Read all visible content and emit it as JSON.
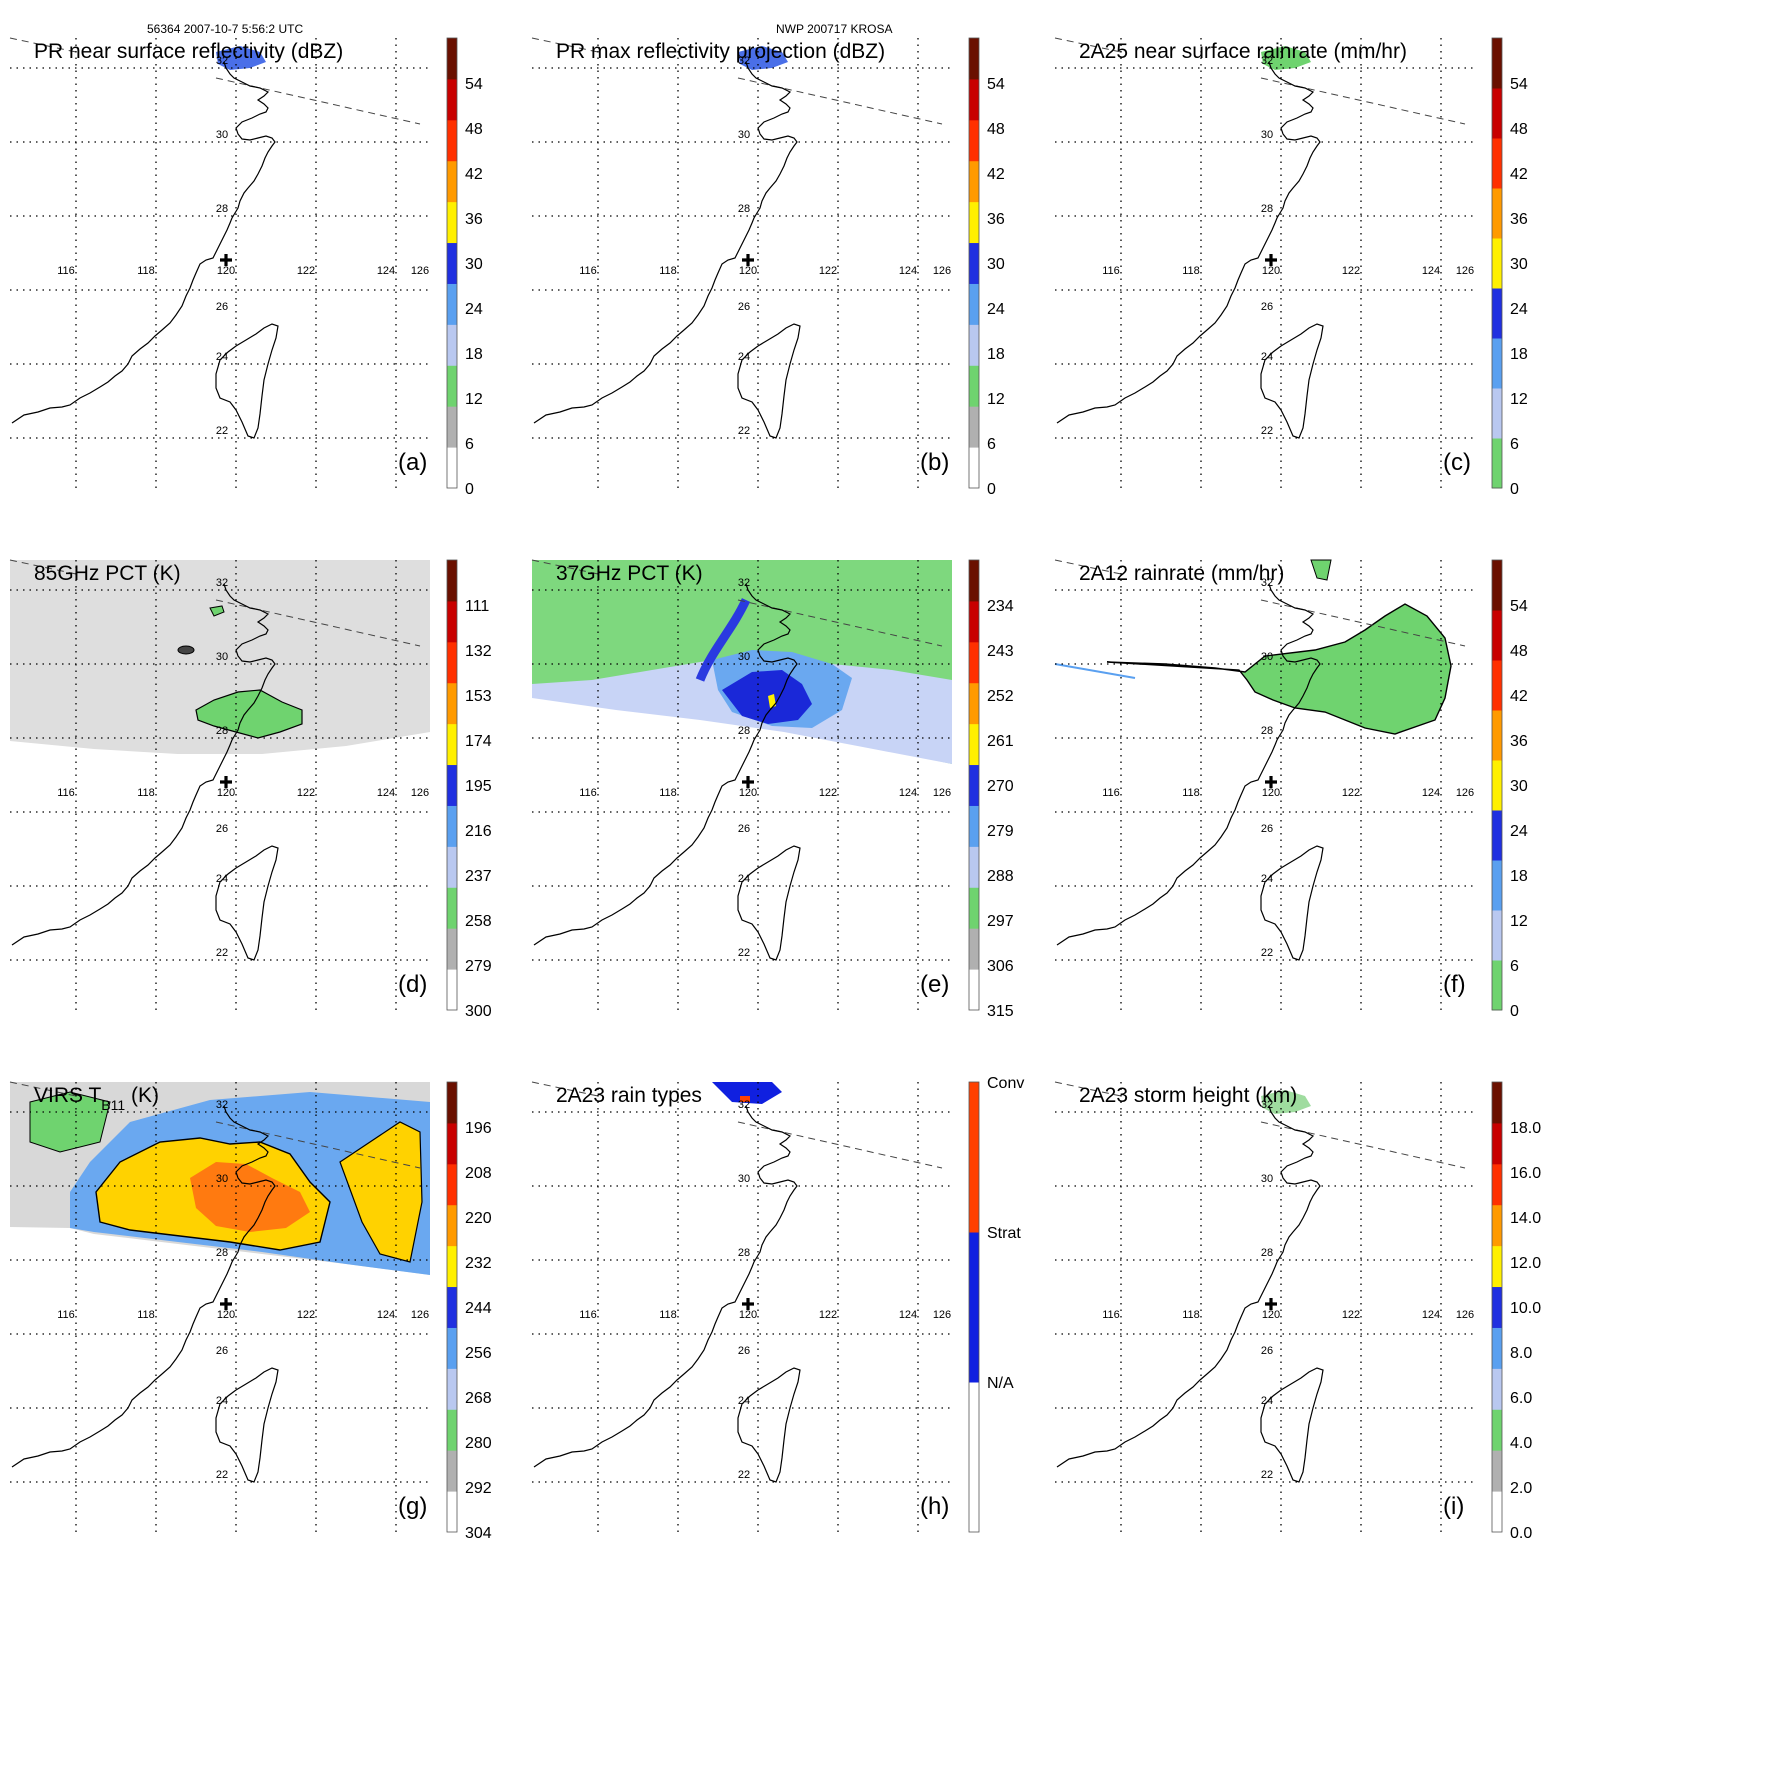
{
  "header": {
    "left": "56364 2007-10-7 5:56:2 UTC",
    "center": "NWP 200717 KROSA"
  },
  "lon_labels": [
    "116",
    "118",
    "120",
    "122",
    "124",
    "126"
  ],
  "lat_labels": [
    "32",
    "30",
    "28",
    "26",
    "24",
    "22"
  ],
  "panels": [
    {
      "id": "a",
      "title": "PR near surface reflectivity (dBZ)",
      "ticks": [
        "0",
        "6",
        "12",
        "18",
        "24",
        "30",
        "36",
        "42",
        "48",
        "54"
      ],
      "colors": [
        "#ffffff",
        "#b0b0b0",
        "#6fd36f",
        "#b9c8f0",
        "#5aa0f0",
        "#2030e0",
        "#fff000",
        "#ff9a00",
        "#ff3000",
        "#c80000",
        "#6a1000"
      ],
      "swath": "pr"
    },
    {
      "id": "b",
      "title": "PR max reflectivity projection (dBZ)",
      "ticks": [
        "0",
        "6",
        "12",
        "18",
        "24",
        "30",
        "36",
        "42",
        "48",
        "54"
      ],
      "colors": [
        "#ffffff",
        "#b0b0b0",
        "#6fd36f",
        "#b9c8f0",
        "#5aa0f0",
        "#2030e0",
        "#fff000",
        "#ff9a00",
        "#ff3000",
        "#c80000",
        "#6a1000"
      ],
      "swath": "pr"
    },
    {
      "id": "c",
      "title": "2A25 near surface rainrate (mm/hr)",
      "ticks": [
        "0",
        "6",
        "12",
        "18",
        "24",
        "30",
        "36",
        "42",
        "48",
        "54"
      ],
      "colors": [
        "#6fd36f",
        "#b9c8f0",
        "#5aa0f0",
        "#2030e0",
        "#fff000",
        "#ff9a00",
        "#ff3000",
        "#c80000",
        "#6a1000"
      ],
      "swath": "pr"
    },
    {
      "id": "d",
      "title": "85GHz PCT (K)",
      "ticks": [
        "300",
        "279",
        "258",
        "237",
        "216",
        "195",
        "174",
        "153",
        "132",
        "111"
      ],
      "colors": [
        "#ffffff",
        "#b0b0b0",
        "#6fd36f",
        "#b9c8f0",
        "#5aa0f0",
        "#2030e0",
        "#fff000",
        "#ff9a00",
        "#ff3000",
        "#c80000",
        "#6a1000"
      ],
      "swath": "tmi85"
    },
    {
      "id": "e",
      "title": "37GHz PCT (K)",
      "ticks": [
        "315",
        "306",
        "297",
        "288",
        "279",
        "270",
        "261",
        "252",
        "243",
        "234"
      ],
      "colors": [
        "#ffffff",
        "#b0b0b0",
        "#6fd36f",
        "#b9c8f0",
        "#5aa0f0",
        "#2030e0",
        "#fff000",
        "#ff9a00",
        "#ff3000",
        "#c80000",
        "#6a1000"
      ],
      "swath": "tmi37"
    },
    {
      "id": "f",
      "title": "2A12 rainrate (mm/hr)",
      "ticks": [
        "0",
        "6",
        "12",
        "18",
        "24",
        "30",
        "36",
        "42",
        "48",
        "54"
      ],
      "colors": [
        "#6fd36f",
        "#b9c8f0",
        "#5aa0f0",
        "#2030e0",
        "#fff000",
        "#ff9a00",
        "#ff3000",
        "#c80000",
        "#6a1000"
      ],
      "swath": "tmirain"
    },
    {
      "id": "g",
      "title": "VIRS T",
      "title_sub": "B11",
      "title_end": " (K)",
      "ticks": [
        "304",
        "292",
        "280",
        "268",
        "256",
        "244",
        "232",
        "220",
        "208",
        "196"
      ],
      "colors": [
        "#ffffff",
        "#b0b0b0",
        "#6fd36f",
        "#b9c8f0",
        "#5aa0f0",
        "#2030e0",
        "#fff000",
        "#ff9a00",
        "#ff3000",
        "#c80000",
        "#6a1000"
      ],
      "swath": "virs"
    },
    {
      "id": "h",
      "title": "2A23 rain types",
      "ticks": [
        "N/A",
        "Strat",
        "Conv"
      ],
      "colors": [
        "#ffffff",
        "#1020e0",
        "#ff4000"
      ],
      "swath": "types"
    },
    {
      "id": "i",
      "title": "2A23 storm height (km)",
      "ticks": [
        "0.0",
        "2.0",
        "4.0",
        "6.0",
        "8.0",
        "10.0",
        "12.0",
        "14.0",
        "16.0",
        "18.0"
      ],
      "colors": [
        "#ffffff",
        "#b0b0b0",
        "#6fd36f",
        "#b9c8f0",
        "#5aa0f0",
        "#2030e0",
        "#fff000",
        "#ff9a00",
        "#ff3000",
        "#c80000",
        "#6a1000"
      ],
      "swath": "pr"
    }
  ]
}
